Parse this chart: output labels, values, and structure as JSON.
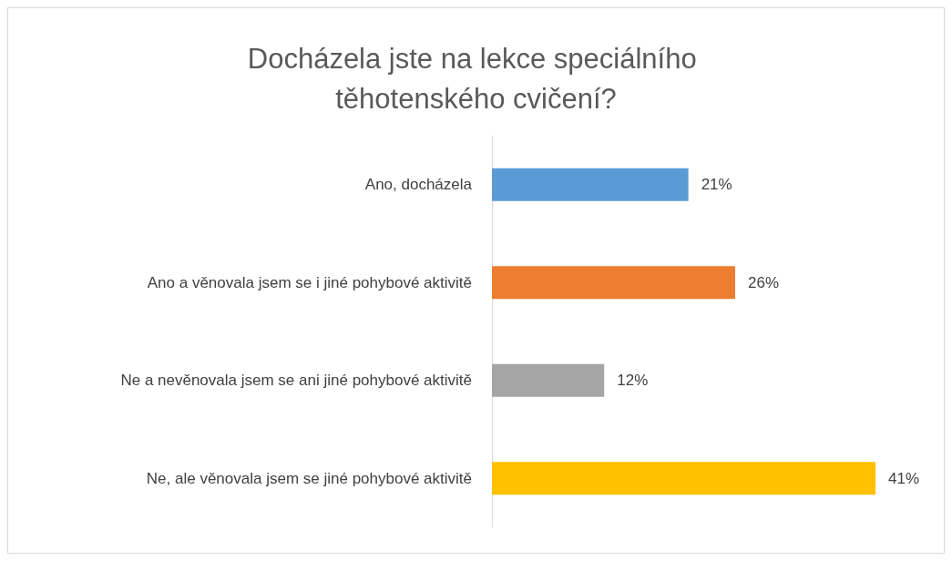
{
  "chart_data": {
    "type": "bar",
    "orientation": "horizontal",
    "title": "Docházela jste na lekce speciálního těhotenského cvičení?",
    "categories": [
      "Ano, docházela",
      "Ano a věnovala jsem se i jiné pohybové aktivitě",
      "Ne a nevěnovala jsem se ani jiné pohybové aktivitě",
      "Ne, ale věnovala jsem se jiné pohybové aktivitě"
    ],
    "values": [
      21,
      26,
      12,
      41
    ],
    "colors": [
      "#5b9bd5",
      "#ed7d31",
      "#a5a5a5",
      "#ffc000"
    ],
    "value_labels": [
      "21%",
      "26%",
      "12%",
      "41%"
    ]
  }
}
